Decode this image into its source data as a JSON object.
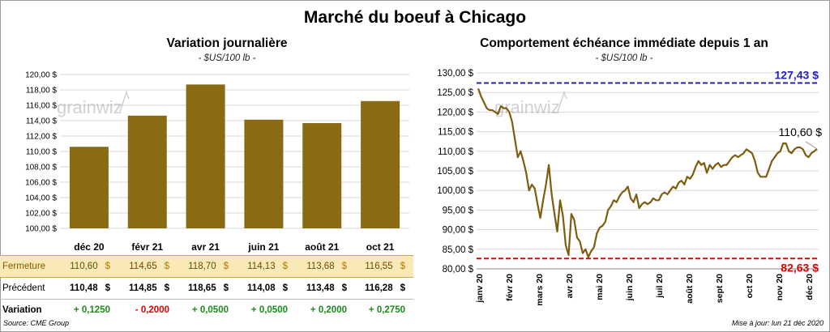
{
  "title": "Marché du boeuf à Chicago",
  "left": {
    "title": "Variation  journalière",
    "units": "- $US/100 lb -"
  },
  "right": {
    "title": "Comportement  échéance immédiate depuis 1 an",
    "units": "- $US/100 lb -",
    "max_label": "127,43 $",
    "min_label": "82,63 $",
    "last_label": "110,60 $"
  },
  "watermark": {
    "text": "grainwiz"
  },
  "colors": {
    "bar": "#8a6a12",
    "line": "#7d5d0f",
    "max": "#2222bb",
    "min": "#dd0000",
    "fermeture_bg": "#f9e9b7",
    "positive": "#1a8a1a",
    "negative": "#e00000"
  },
  "table": {
    "rows": [
      {
        "label": "Fermeture",
        "values": [
          "110,60",
          "114,65",
          "118,70",
          "114,13",
          "113,68",
          "116,55"
        ],
        "suffix": "$"
      },
      {
        "label": "Précédent",
        "values": [
          "110,48",
          "114,85",
          "118,65",
          "114,08",
          "113,48",
          "116,28"
        ],
        "suffix": "$"
      },
      {
        "label": "Variation",
        "values": [
          "+ 0,1250",
          "- 0,2000",
          "+ 0,0500",
          "+ 0,0500",
          "+ 0,2000",
          "+ 0,2750"
        ]
      }
    ]
  },
  "footer": {
    "source": "Source: CME Group",
    "updated": "Mise à jour: lun 21 déc 2020"
  },
  "chart_data": [
    {
      "type": "bar",
      "categories": [
        "déc 20",
        "févr 21",
        "avr 21",
        "juin 21",
        "août 21",
        "oct 21"
      ],
      "values": [
        110.6,
        114.65,
        118.7,
        114.13,
        113.68,
        116.55
      ],
      "ylim": [
        100,
        120
      ],
      "yticks": [
        "100,00 $",
        "102,00 $",
        "104,00 $",
        "106,00 $",
        "108,00 $",
        "110,00 $",
        "112,00 $",
        "114,00 $",
        "116,00 $",
        "118,00 $",
        "120,00 $"
      ],
      "grid": true
    },
    {
      "type": "line",
      "ylim": [
        80,
        130
      ],
      "yticks": [
        "80,00 $",
        "85,00 $",
        "90,00 $",
        "95,00 $",
        "100,00 $",
        "105,00 $",
        "110,00 $",
        "115,00 $",
        "120,00 $",
        "125,00 $",
        "130,00 $"
      ],
      "xticks": [
        "janv 20",
        "févr 20",
        "mars 20",
        "avr 20",
        "mai 20",
        "juin 20",
        "juil 20",
        "août 20",
        "sept 20",
        "oct 20",
        "nov 20",
        "déc 20"
      ],
      "reference_lines": [
        {
          "label": "127,43 $",
          "value": 127.43
        },
        {
          "label": "82,63 $",
          "value": 82.63
        }
      ],
      "series": [
        {
          "values": [
            126.0,
            124.0,
            122.5,
            121.0,
            120.5,
            120.5,
            120.0,
            119.5,
            121.5,
            121.0,
            121.0,
            120.0,
            117.5,
            113.0,
            108.5,
            110.0,
            107.5,
            104.5,
            100.0,
            101.5,
            100.5,
            96.5,
            93.0,
            97.5,
            101.5,
            106.5,
            99.0,
            94.0,
            89.5,
            97.5,
            93.5,
            86.0,
            83.5,
            94.0,
            92.5,
            88.0,
            87.0,
            84.0,
            85.0,
            83.0,
            84.5,
            85.5,
            89.0,
            90.5,
            91.0,
            92.0,
            95.0,
            96.0,
            97.5,
            97.0,
            98.5,
            99.5,
            100.0,
            101.0,
            98.0,
            97.0,
            99.0,
            95.5,
            96.5,
            97.0,
            96.5,
            97.0,
            98.0,
            97.5,
            97.5,
            99.0,
            99.5,
            99.0,
            100.0,
            101.0,
            100.5,
            102.0,
            102.5,
            101.5,
            103.5,
            103.0,
            104.0,
            106.0,
            107.5,
            106.5,
            107.0,
            104.5,
            106.5,
            105.5,
            106.5,
            107.0,
            106.0,
            106.5,
            106.5,
            107.5,
            108.5,
            109.0,
            108.5,
            109.0,
            109.5,
            110.5,
            110.0,
            109.5,
            107.5,
            104.5,
            103.5,
            103.5,
            103.5,
            105.5,
            107.5,
            108.5,
            109.5,
            110.0,
            112.0,
            112.0,
            110.0,
            109.5,
            110.5,
            111.0,
            111.0,
            110.5,
            109.0,
            108.5,
            109.5,
            110.0,
            110.6
          ]
        }
      ]
    }
  ]
}
